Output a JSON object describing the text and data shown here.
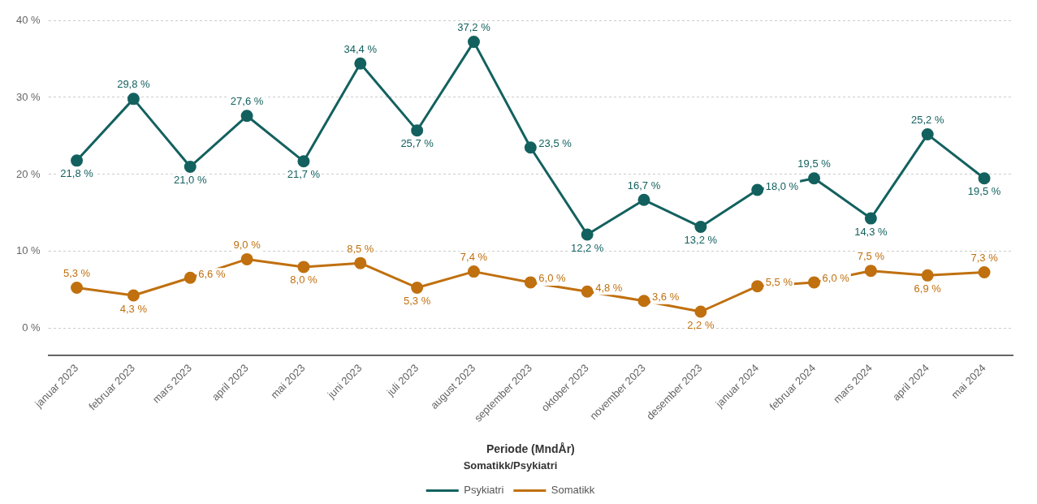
{
  "chart_data": {
    "type": "line",
    "xlabel": "Periode (MndÅr)",
    "legend_title": "Somatikk/Psykiatri",
    "legend": "bottom",
    "grid": "y",
    "marker": "circle",
    "categories": [
      "januar 2023",
      "februar 2023",
      "mars 2023",
      "april 2023",
      "mai 2023",
      "juni 2023",
      "juli 2023",
      "august 2023",
      "september 2023",
      "oktober 2023",
      "november 2023",
      "desember 2023",
      "januar 2024",
      "februar 2024",
      "mars 2024",
      "april 2024",
      "mai 2024"
    ],
    "ylim": [
      -3.5,
      40
    ],
    "yticks": [
      {
        "value": 0,
        "label": "0 %"
      },
      {
        "value": 10,
        "label": "10 %"
      },
      {
        "value": 20,
        "label": "20 %"
      },
      {
        "value": 30,
        "label": "30 %"
      },
      {
        "value": 40,
        "label": "40 %"
      }
    ],
    "series": [
      {
        "name": "Psykiatri",
        "color": "#13615f",
        "values": [
          21.8,
          29.8,
          21.0,
          27.6,
          21.7,
          34.4,
          25.7,
          37.2,
          23.5,
          12.2,
          16.7,
          13.2,
          18.0,
          19.5,
          14.3,
          25.2,
          19.5
        ],
        "value_labels": [
          "21,8 %",
          "29,8 %",
          "21,0 %",
          "27,6 %",
          "21,7 %",
          "34,4 %",
          "25,7 %",
          "37,2 %",
          "23,5 %",
          "12,2 %",
          "16,7 %",
          "13,2 %",
          "18,0 %",
          "19,5 %",
          "14,3 %",
          "25,2 %",
          "19,5 %"
        ]
      },
      {
        "name": "Somatikk",
        "color": "#c0700f",
        "values": [
          5.3,
          4.3,
          6.6,
          9.0,
          8.0,
          8.5,
          5.3,
          7.4,
          6.0,
          4.8,
          3.6,
          2.2,
          5.5,
          6.0,
          7.5,
          6.9,
          7.3
        ],
        "value_labels": [
          "5,3 %",
          "4,3 %",
          "6,6 %",
          "9,0 %",
          "8,0 %",
          "8,5 %",
          "5,3 %",
          "7,4 %",
          "6,0 %",
          "4,8 %",
          "3,6 %",
          "2,2 %",
          "5,5 %",
          "6,0 %",
          "7,5 %",
          "6,9 %",
          "7,3 %"
        ]
      }
    ]
  }
}
